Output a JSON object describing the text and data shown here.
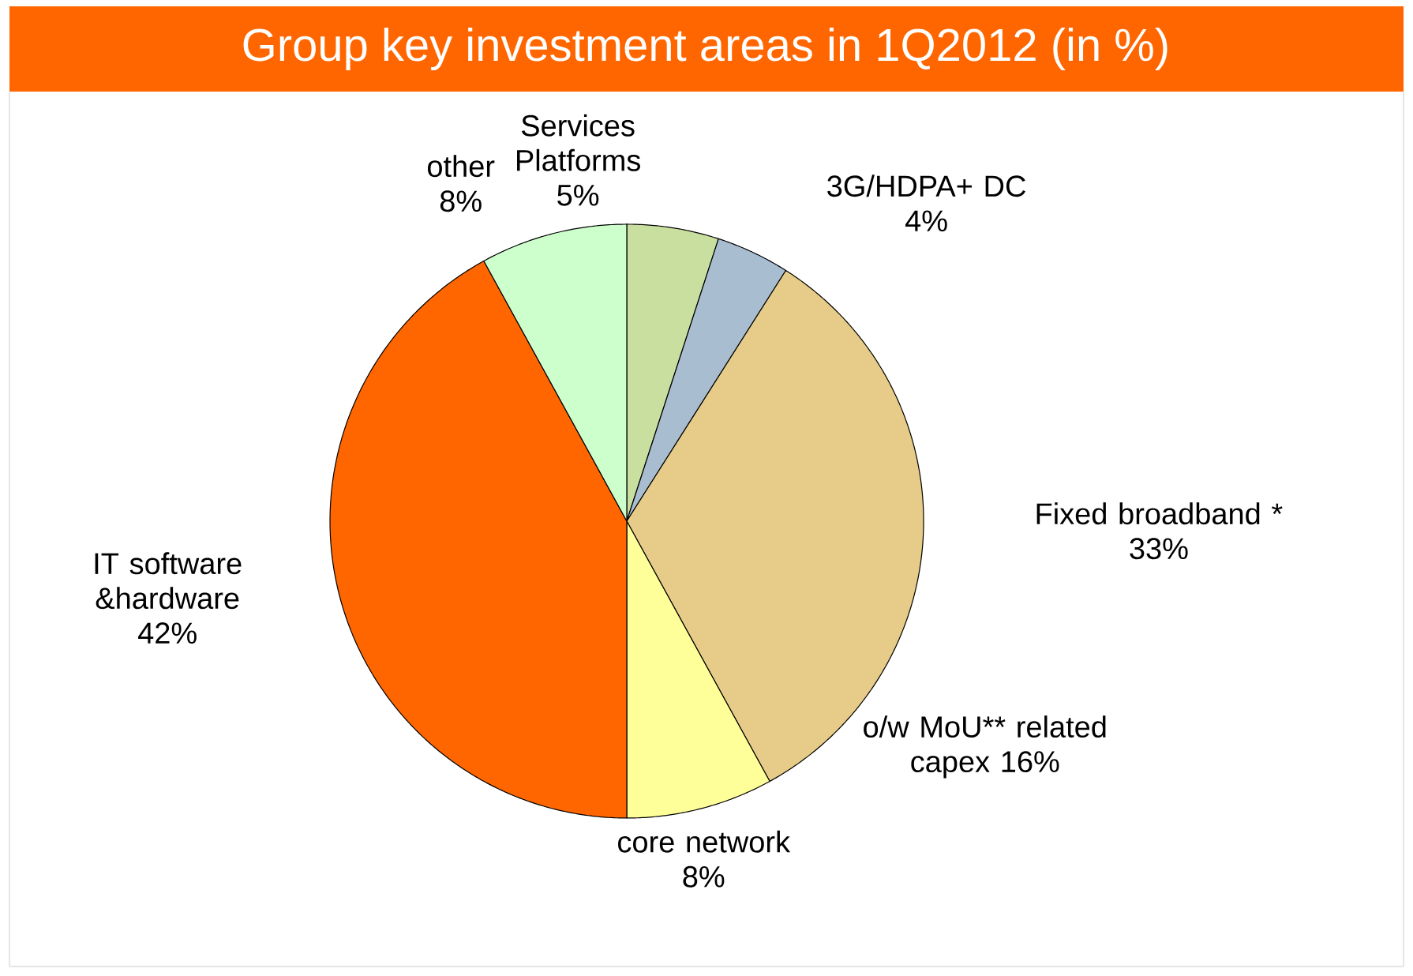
{
  "chart_data": {
    "type": "pie",
    "title": "Group key investment areas in 1Q2012  (in %)",
    "categories": [
      "Services Platforms",
      "3G/HDPA+ DC",
      "Fixed broadband *",
      "core network",
      "IT software &hardware",
      "other"
    ],
    "values": [
      5,
      4,
      33,
      8,
      42,
      8
    ],
    "value_labels": [
      "5%",
      "4%",
      "33%",
      "8%",
      "42%",
      "8%"
    ],
    "colors": [
      "#c9dfa0",
      "#a9bdd1",
      "#e6cc88",
      "#ffff99",
      "#ff6600",
      "#ccffcc"
    ],
    "annotations": [
      "o/w MoU** related capex 16%"
    ]
  }
}
